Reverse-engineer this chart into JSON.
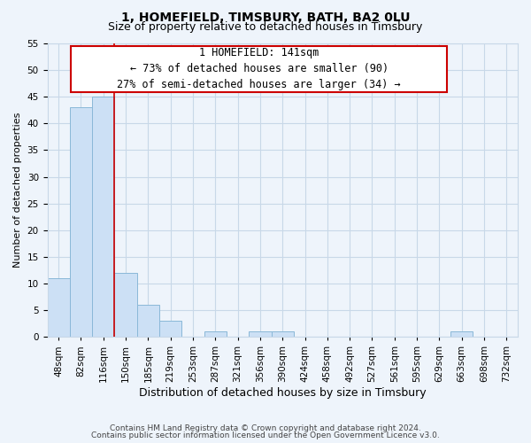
{
  "title": "1, HOMEFIELD, TIMSBURY, BATH, BA2 0LU",
  "subtitle": "Size of property relative to detached houses in Timsbury",
  "xlabel": "Distribution of detached houses by size in Timsbury",
  "ylabel": "Number of detached properties",
  "bar_heights": [
    11,
    43,
    45,
    12,
    6,
    3,
    0,
    1,
    0,
    1,
    1,
    0,
    0,
    0,
    0,
    0,
    0,
    0,
    1,
    0,
    0
  ],
  "bar_color": "#cce0f5",
  "bar_edge_color": "#8ab8d8",
  "subject_line_color": "#cc0000",
  "subject_line_bin_index": 3,
  "ylim": [
    0,
    55
  ],
  "yticks": [
    0,
    5,
    10,
    15,
    20,
    25,
    30,
    35,
    40,
    45,
    50,
    55
  ],
  "annotation_line1": "1 HOMEFIELD: 141sqm",
  "annotation_line2": "← 73% of detached houses are smaller (90)",
  "annotation_line3": "27% of semi-detached houses are larger (34) →",
  "footnote1": "Contains HM Land Registry data © Crown copyright and database right 2024.",
  "footnote2": "Contains public sector information licensed under the Open Government Licence v3.0.",
  "grid_color": "#c8d8e8",
  "background_color": "#eef4fb",
  "tick_labels": [
    "48sqm",
    "82sqm",
    "116sqm",
    "150sqm",
    "185sqm",
    "219sqm",
    "253sqm",
    "287sqm",
    "321sqm",
    "356sqm",
    "390sqm",
    "424sqm",
    "458sqm",
    "492sqm",
    "527sqm",
    "561sqm",
    "595sqm",
    "629sqm",
    "663sqm",
    "698sqm",
    "732sqm"
  ],
  "title_fontsize": 10,
  "subtitle_fontsize": 9,
  "xlabel_fontsize": 9,
  "ylabel_fontsize": 8,
  "tick_fontsize": 7.5,
  "annotation_fontsize": 8.5,
  "footnote_fontsize": 6.5
}
